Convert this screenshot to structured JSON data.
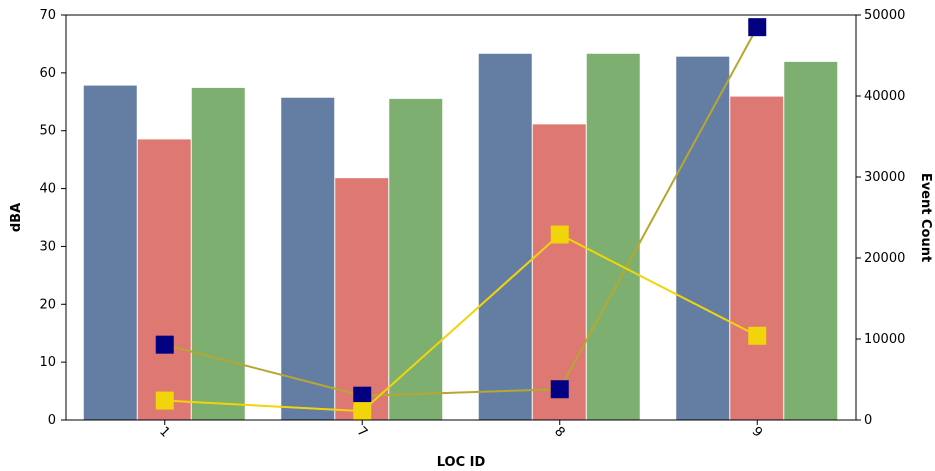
{
  "chart_data": {
    "type": "bar",
    "categories": [
      "1",
      "7",
      "8",
      "9"
    ],
    "xlabel": "LOC ID",
    "ylabel": "dBA",
    "ylabel_right": "Event Count",
    "ylim": [
      0,
      70
    ],
    "ylim_right": [
      0,
      50000
    ],
    "yticks": [
      0,
      10,
      20,
      30,
      40,
      50,
      60,
      70
    ],
    "yticks_right": [
      0,
      10000,
      20000,
      30000,
      40000,
      50000
    ],
    "grid": false,
    "bar_series": [
      {
        "values": [
          57.8,
          55.7,
          63.3,
          62.8
        ],
        "color": "#647ea3"
      },
      {
        "values": [
          48.5,
          41.8,
          51.1,
          55.9
        ],
        "color": "#dd7873"
      },
      {
        "values": [
          57.4,
          55.5,
          63.3,
          61.9
        ],
        "color": "#7db070"
      }
    ],
    "line_series": [
      {
        "values": [
          9300,
          3000,
          3800,
          48500
        ],
        "color": "#000080",
        "line_color": "#b5a82e",
        "axis": "right"
      },
      {
        "values": [
          2400,
          1100,
          22900,
          10400
        ],
        "color": "#f2d40b",
        "line_color": "#f2d40b",
        "axis": "right"
      }
    ]
  }
}
